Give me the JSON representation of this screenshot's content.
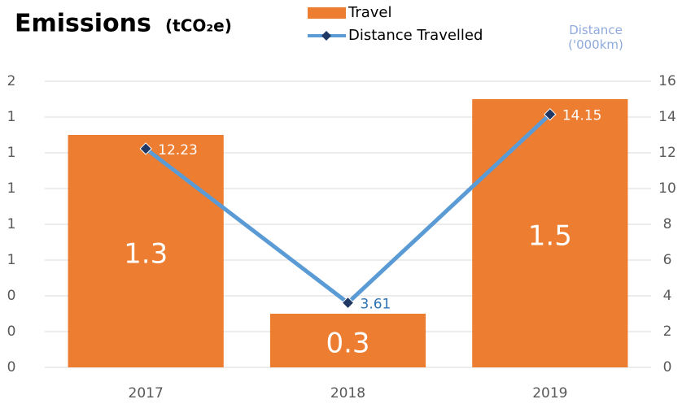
{
  "chart_data": {
    "type": "bar_line",
    "title": "Emissions",
    "title_unit": "(tCO₂e)",
    "y2_label": "Distance ('000km)",
    "categories": [
      "2017",
      "2018",
      "2019"
    ],
    "series": [
      {
        "name": "Travel",
        "type": "bar",
        "color": "#ED7D31",
        "values": [
          1.3,
          0.3,
          1.5
        ]
      },
      {
        "name": "Distance Travelled",
        "type": "line",
        "axis": "y2",
        "color": "#5B9BD5",
        "marker_color": "#1F3864",
        "values": [
          12.23,
          3.61,
          14.15
        ]
      }
    ],
    "ylim": [
      0,
      1.6
    ],
    "yticks": [
      {
        "value": 0,
        "label": "0"
      },
      {
        "value": 0.2,
        "label": "0"
      },
      {
        "value": 0.4,
        "label": "0"
      },
      {
        "value": 0.6,
        "label": "1"
      },
      {
        "value": 0.8,
        "label": "1"
      },
      {
        "value": 1.0,
        "label": "1"
      },
      {
        "value": 1.2,
        "label": "1"
      },
      {
        "value": 1.4,
        "label": "1"
      },
      {
        "value": 1.6,
        "label": "2"
      }
    ],
    "y2lim": [
      0,
      16
    ],
    "y2ticks": [
      0,
      2,
      4,
      6,
      8,
      10,
      12,
      14,
      16
    ],
    "grid": true
  }
}
